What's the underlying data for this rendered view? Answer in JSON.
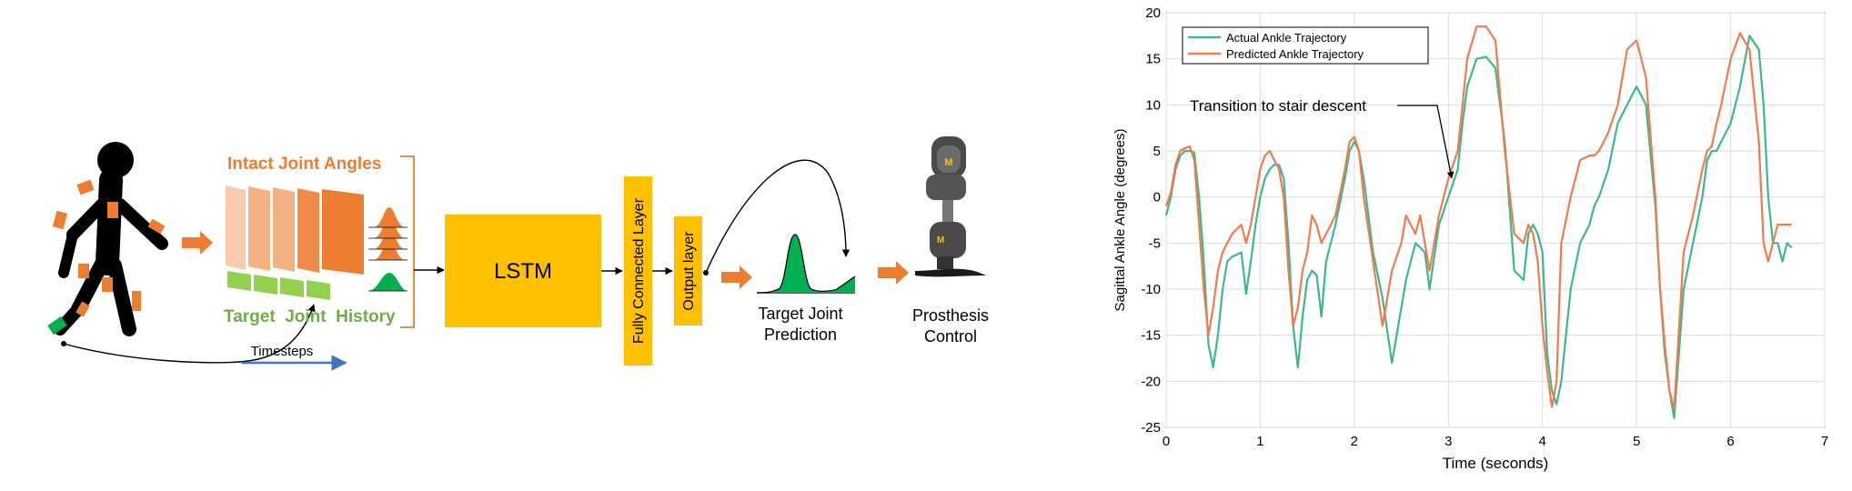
{
  "diagram": {
    "intact_label": "Intact Joint Angles",
    "target_label": "Target  Joint  History",
    "timesteps_label": "Timesteps",
    "lstm_label": "LSTM",
    "fc_label": "Fully Connected Layer",
    "output_label": "Output layer",
    "prediction_label_line1": "Target Joint",
    "prediction_label_line2": "Prediction",
    "prosthesis_label_line1": "Prosthesis",
    "prosthesis_label_line2": "Control",
    "logo_letter": "M",
    "colors": {
      "orange": "#ED7D31",
      "orange_light": "#F4B183",
      "green": "#70AD47",
      "green_dark": "#00B050",
      "gold": "#FFC000",
      "blue": "#4472C4",
      "black": "#000000"
    }
  },
  "chart_data": {
    "type": "line",
    "xlabel": "Time (seconds)",
    "ylabel": "Sagittal Ankle Angle (degrees)",
    "xlim": [
      0,
      7
    ],
    "ylim": [
      -25,
      20
    ],
    "xticks": [
      0,
      1,
      2,
      3,
      4,
      5,
      6,
      7
    ],
    "yticks": [
      -25,
      -20,
      -15,
      -10,
      -5,
      0,
      5,
      10,
      15,
      20
    ],
    "grid": true,
    "legend_position": "top-left",
    "annotation": "Transition to stair descent",
    "series": [
      {
        "name": "Actual Ankle Trajectory",
        "color": "#3CB890",
        "x": [
          0.0,
          0.05,
          0.1,
          0.15,
          0.2,
          0.25,
          0.3,
          0.35,
          0.4,
          0.45,
          0.5,
          0.55,
          0.6,
          0.65,
          0.7,
          0.8,
          0.85,
          0.9,
          0.95,
          1.0,
          1.05,
          1.1,
          1.15,
          1.2,
          1.25,
          1.3,
          1.35,
          1.4,
          1.45,
          1.5,
          1.55,
          1.6,
          1.65,
          1.7,
          1.8,
          1.9,
          1.95,
          2.0,
          2.05,
          2.1,
          2.2,
          2.3,
          2.4,
          2.5,
          2.55,
          2.6,
          2.65,
          2.7,
          2.75,
          2.8,
          2.9,
          3.0,
          3.1,
          3.15,
          3.2,
          3.3,
          3.4,
          3.5,
          3.6,
          3.7,
          3.8,
          3.85,
          3.9,
          3.95,
          4.0,
          4.05,
          4.1,
          4.15,
          4.2,
          4.3,
          4.4,
          4.5,
          4.55,
          4.6,
          4.7,
          4.8,
          4.85,
          4.9,
          5.0,
          5.1,
          5.2,
          5.25,
          5.3,
          5.35,
          5.4,
          5.5,
          5.6,
          5.7,
          5.75,
          5.8,
          5.85,
          5.9,
          6.0,
          6.1,
          6.2,
          6.3,
          6.35,
          6.4,
          6.45,
          6.5,
          6.55,
          6.6,
          6.65
        ],
        "y": [
          -2,
          0,
          3,
          4.5,
          5,
          5,
          4.8,
          0,
          -7,
          -16,
          -18.5,
          -15,
          -10,
          -7,
          -6.5,
          -6,
          -10.5,
          -7,
          -3,
          0,
          2,
          3,
          3.5,
          3.5,
          2,
          -5,
          -14,
          -18.5,
          -13,
          -9,
          -8,
          -8.5,
          -13,
          -7,
          -3,
          2,
          5,
          6,
          5,
          2,
          -6,
          -11,
          -18,
          -12,
          -9,
          -7,
          -5,
          -5.5,
          -6,
          -10,
          -3,
          0,
          3,
          8,
          12,
          15,
          15.2,
          14,
          6,
          -8,
          -9,
          -4,
          -3,
          -4,
          -6,
          -17,
          -21,
          -22.5,
          -20,
          -10,
          -5,
          -3,
          -1,
          0,
          3,
          8,
          9,
          10,
          12,
          10,
          -1,
          -10,
          -17,
          -21,
          -24,
          -10,
          -5,
          0,
          4,
          5,
          5,
          6,
          8,
          12,
          17.5,
          16,
          10,
          0,
          -5,
          -5,
          -7,
          -5,
          -5.5
        ]
      },
      {
        "name": "Predicted Ankle Trajectory",
        "color": "#F07B4F",
        "x": [
          0.0,
          0.05,
          0.1,
          0.15,
          0.2,
          0.25,
          0.3,
          0.35,
          0.4,
          0.45,
          0.5,
          0.55,
          0.6,
          0.65,
          0.7,
          0.8,
          0.85,
          0.9,
          0.95,
          1.0,
          1.05,
          1.1,
          1.15,
          1.2,
          1.25,
          1.3,
          1.35,
          1.4,
          1.45,
          1.5,
          1.55,
          1.6,
          1.65,
          1.7,
          1.8,
          1.9,
          1.95,
          2.0,
          2.05,
          2.1,
          2.2,
          2.3,
          2.4,
          2.5,
          2.55,
          2.6,
          2.65,
          2.7,
          2.75,
          2.8,
          2.9,
          3.0,
          3.1,
          3.15,
          3.2,
          3.3,
          3.4,
          3.5,
          3.6,
          3.7,
          3.8,
          3.85,
          3.9,
          3.95,
          4.0,
          4.05,
          4.1,
          4.15,
          4.2,
          4.3,
          4.4,
          4.5,
          4.55,
          4.6,
          4.7,
          4.8,
          4.85,
          4.9,
          5.0,
          5.1,
          5.2,
          5.25,
          5.3,
          5.35,
          5.4,
          5.5,
          5.6,
          5.7,
          5.75,
          5.8,
          5.85,
          5.9,
          6.0,
          6.1,
          6.2,
          6.3,
          6.35,
          6.4,
          6.45,
          6.5,
          6.55,
          6.6,
          6.65
        ],
        "y": [
          -1,
          0.5,
          3.5,
          5,
          5.3,
          5.5,
          4,
          -3,
          -10,
          -15,
          -12,
          -8,
          -6,
          -5,
          -4,
          -3,
          -5,
          -3,
          0,
          3,
          4.5,
          5,
          4,
          3,
          0,
          -8,
          -14,
          -12,
          -8,
          -6,
          -2,
          -3,
          -5,
          -4,
          -2,
          3,
          6,
          6.5,
          5,
          0,
          -7,
          -14,
          -8,
          -5,
          -2,
          -3,
          -4,
          -2,
          -5,
          -8,
          -2,
          2,
          5,
          10,
          15,
          18.5,
          18.5,
          17,
          5,
          -4,
          -5,
          -3,
          -4,
          -7,
          -14,
          -19,
          -22.8,
          -20,
          -5,
          0,
          4,
          4.5,
          4.5,
          5,
          7,
          10,
          13,
          16,
          17,
          13,
          0,
          -10,
          -16,
          -21,
          -23,
          -6,
          -2,
          3,
          5,
          5.5,
          8,
          10,
          15,
          17.8,
          16,
          6,
          -5,
          -7,
          -5,
          -3,
          -3,
          -3,
          -3
        ]
      }
    ]
  }
}
